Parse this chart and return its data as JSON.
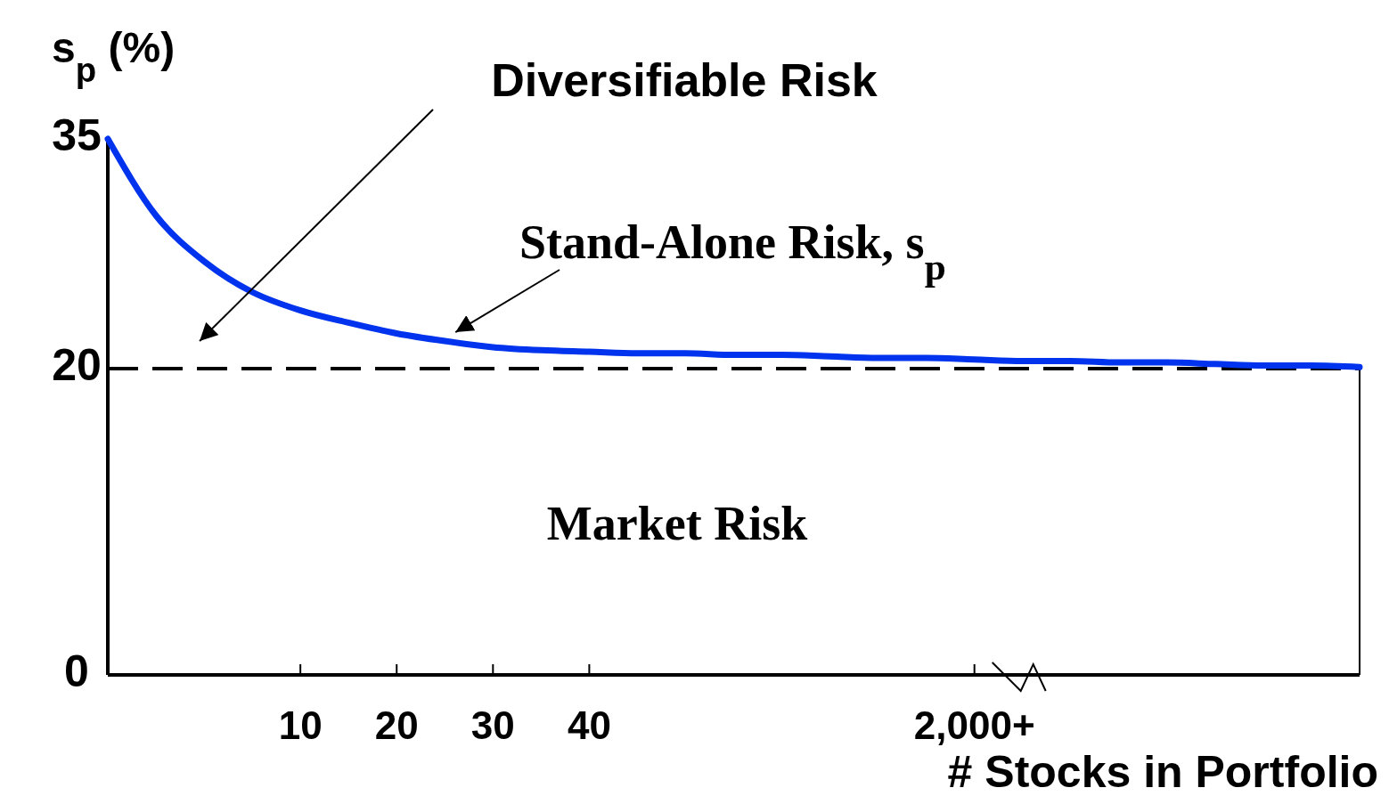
{
  "chart_data": {
    "type": "line",
    "ylabel": "s$_{p}$ (%)",
    "xlabel": "# Stocks in Portfolio",
    "categories": [
      null,
      null,
      null,
      null,
      "10",
      null,
      "20",
      null,
      "30",
      null,
      "40",
      null,
      null,
      null,
      null,
      null,
      null,
      null,
      "2,000+",
      null,
      null,
      null,
      null,
      null,
      null,
      null,
      null
    ],
    "series": [
      {
        "color": "#0033ee",
        "values": [
          35,
          30,
          27,
          25,
          23.8,
          23,
          22.3,
          21.8,
          21.4,
          21.2,
          21.1,
          21,
          21,
          20.9,
          20.9,
          20.8,
          20.7,
          20.7,
          20.6,
          20.5,
          20.5,
          20.4,
          20.4,
          20.3,
          20.2,
          20.2,
          20.1
        ]
      }
    ],
    "ylim": [
      0,
      35
    ],
    "yticks": [
      0,
      20,
      35
    ],
    "grid": false,
    "marker": "none",
    "line_style": "solid",
    "ref_lines": [
      {
        "axis": "y",
        "value": 20,
        "color": "#000000",
        "line_style": "dashed"
      }
    ],
    "annotations": [
      "Diversifiable Risk",
      "Stand-Alone Risk, s$_{p}$",
      "Market Risk"
    ]
  }
}
